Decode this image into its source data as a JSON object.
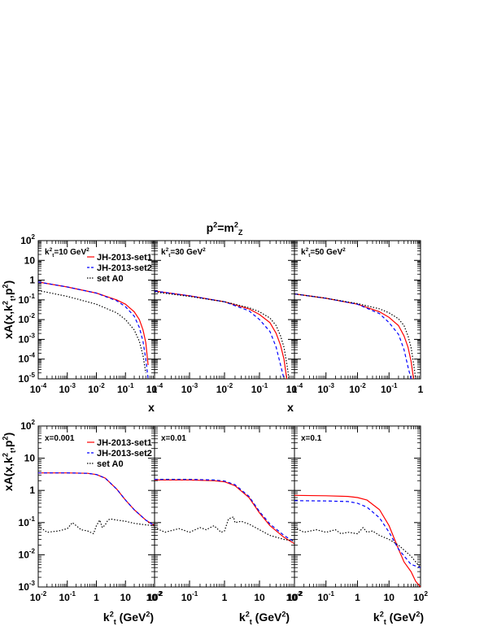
{
  "figure": {
    "title": "p²=m²_Z",
    "top_ylabel": "xA(x,k²_t,p²)",
    "bottom_ylabel": "xA(x,k²_t,p²)",
    "top_xlabel": "x",
    "bottom_xlabel": "k²_t (GeV²)"
  },
  "legend": {
    "entries": [
      {
        "label": "JH-2013-set1",
        "color": "#ff0000",
        "style": "solid"
      },
      {
        "label": "JH-2013-set2",
        "color": "#0000ff",
        "style": "dashed"
      },
      {
        "label": "set A0",
        "color": "#000000",
        "style": "dotted"
      }
    ]
  },
  "chart_data": [
    {
      "type": "line",
      "panel": "top-left",
      "annotation": "k²_t=10 GeV²",
      "xscale": "log",
      "yscale": "log",
      "xlim": [
        0.0001,
        1
      ],
      "ylim": [
        1e-05,
        100
      ],
      "series": [
        {
          "name": "JH-2013-set1",
          "x": [
            0.0001,
            0.001,
            0.01,
            0.05,
            0.1,
            0.2,
            0.3,
            0.4,
            0.5,
            0.6
          ],
          "y": [
            0.8,
            0.45,
            0.22,
            0.1,
            0.06,
            0.025,
            0.01,
            0.003,
            0.0007,
            5e-05
          ]
        },
        {
          "name": "JH-2013-set2",
          "x": [
            0.0001,
            0.001,
            0.01,
            0.05,
            0.1,
            0.2,
            0.3,
            0.4,
            0.5,
            0.6
          ],
          "y": [
            0.8,
            0.45,
            0.22,
            0.09,
            0.045,
            0.015,
            0.004,
            0.0008,
            0.0001,
            1e-05
          ]
        },
        {
          "name": "set A0",
          "x": [
            0.0001,
            0.001,
            0.01,
            0.05,
            0.1,
            0.2,
            0.3,
            0.4,
            0.5
          ],
          "y": [
            0.3,
            0.15,
            0.06,
            0.022,
            0.01,
            0.003,
            0.0008,
            0.00015,
            2e-05
          ]
        }
      ]
    },
    {
      "type": "line",
      "panel": "top-middle",
      "annotation": "k²_t=30 GeV²",
      "xscale": "log",
      "yscale": "log",
      "xlim": [
        0.0001,
        1
      ],
      "ylim": [
        1e-05,
        100
      ],
      "series": [
        {
          "name": "JH-2013-set1",
          "x": [
            0.0001,
            0.001,
            0.01,
            0.05,
            0.1,
            0.2,
            0.3,
            0.4,
            0.5,
            0.6
          ],
          "y": [
            0.28,
            0.16,
            0.08,
            0.035,
            0.018,
            0.007,
            0.002,
            0.0005,
            0.0001,
            1e-05
          ]
        },
        {
          "name": "JH-2013-set2",
          "x": [
            0.0001,
            0.001,
            0.01,
            0.05,
            0.1,
            0.2,
            0.3,
            0.4,
            0.5
          ],
          "y": [
            0.28,
            0.16,
            0.08,
            0.028,
            0.01,
            0.0025,
            0.0004,
            5e-05,
            1e-05
          ]
        },
        {
          "name": "set A0",
          "x": [
            0.0001,
            0.001,
            0.01,
            0.05,
            0.1,
            0.2,
            0.3,
            0.4,
            0.5,
            0.6,
            0.7
          ],
          "y": [
            0.25,
            0.15,
            0.08,
            0.04,
            0.025,
            0.012,
            0.005,
            0.0015,
            0.0004,
            6e-05,
            1e-05
          ]
        }
      ]
    },
    {
      "type": "line",
      "panel": "top-right",
      "annotation": "k²_t=50 GeV²",
      "xscale": "log",
      "yscale": "log",
      "xlim": [
        0.0001,
        1
      ],
      "ylim": [
        1e-05,
        100
      ],
      "series": [
        {
          "name": "JH-2013-set1",
          "x": [
            0.0001,
            0.001,
            0.01,
            0.05,
            0.1,
            0.2,
            0.3,
            0.4,
            0.5,
            0.6
          ],
          "y": [
            0.2,
            0.12,
            0.06,
            0.025,
            0.013,
            0.005,
            0.0015,
            0.0004,
            8e-05,
            1e-05
          ]
        },
        {
          "name": "JH-2013-set2",
          "x": [
            0.0001,
            0.001,
            0.01,
            0.05,
            0.1,
            0.2,
            0.3,
            0.4,
            0.5
          ],
          "y": [
            0.2,
            0.12,
            0.06,
            0.02,
            0.007,
            0.0018,
            0.0003,
            4e-05,
            1e-05
          ]
        },
        {
          "name": "set A0",
          "x": [
            0.0001,
            0.001,
            0.01,
            0.05,
            0.1,
            0.2,
            0.3,
            0.4,
            0.5,
            0.6,
            0.7
          ],
          "y": [
            0.2,
            0.12,
            0.065,
            0.035,
            0.022,
            0.011,
            0.005,
            0.0015,
            0.0004,
            6e-05,
            1e-05
          ]
        }
      ]
    },
    {
      "type": "line",
      "panel": "bottom-left",
      "annotation": "x=0.001",
      "xscale": "log",
      "yscale": "log",
      "xlim": [
        0.01,
        100
      ],
      "ylim": [
        0.001,
        100
      ],
      "series": [
        {
          "name": "JH-2013-set1",
          "x": [
            0.01,
            0.1,
            0.5,
            1,
            2,
            5,
            10,
            20,
            50,
            100
          ],
          "y": [
            3.5,
            3.5,
            3.4,
            3.1,
            2.4,
            1.1,
            0.5,
            0.25,
            0.12,
            0.08
          ]
        },
        {
          "name": "JH-2013-set2",
          "x": [
            0.01,
            0.1,
            0.5,
            1,
            2,
            5,
            10,
            20,
            50,
            100
          ],
          "y": [
            3.5,
            3.5,
            3.4,
            3.1,
            2.4,
            1.1,
            0.5,
            0.25,
            0.12,
            0.08
          ]
        },
        {
          "name": "set A0",
          "x": [
            0.01,
            0.012,
            0.02,
            0.05,
            0.1,
            0.15,
            0.3,
            0.5,
            0.8,
            1,
            1.3,
            1.6,
            2,
            2.5,
            3,
            5,
            10,
            20,
            50,
            100
          ],
          "y": [
            0.1,
            0.07,
            0.05,
            0.055,
            0.065,
            0.1,
            0.06,
            0.055,
            0.045,
            0.08,
            0.12,
            0.07,
            0.085,
            0.12,
            0.13,
            0.12,
            0.11,
            0.095,
            0.085,
            0.08
          ]
        }
      ]
    },
    {
      "type": "line",
      "panel": "bottom-middle",
      "annotation": "x=0.01",
      "xscale": "log",
      "yscale": "log",
      "xlim": [
        0.01,
        100
      ],
      "ylim": [
        0.001,
        100
      ],
      "series": [
        {
          "name": "JH-2013-set1",
          "x": [
            0.01,
            0.1,
            0.5,
            1,
            2,
            5,
            10,
            20,
            50,
            100
          ],
          "y": [
            2.1,
            2.1,
            2.0,
            1.85,
            1.4,
            0.6,
            0.2,
            0.08,
            0.035,
            0.022
          ]
        },
        {
          "name": "JH-2013-set2",
          "x": [
            0.01,
            0.1,
            0.5,
            1,
            2,
            5,
            10,
            20,
            50,
            100
          ],
          "y": [
            2.2,
            2.2,
            2.1,
            1.95,
            1.5,
            0.65,
            0.22,
            0.09,
            0.04,
            0.025
          ]
        },
        {
          "name": "set A0",
          "x": [
            0.01,
            0.02,
            0.05,
            0.1,
            0.2,
            0.3,
            0.5,
            0.8,
            1,
            1.3,
            1.8,
            2,
            3,
            5,
            10,
            20,
            50,
            100
          ],
          "y": [
            0.07,
            0.05,
            0.065,
            0.05,
            0.07,
            0.06,
            0.08,
            0.05,
            0.055,
            0.13,
            0.15,
            0.1,
            0.11,
            0.09,
            0.06,
            0.04,
            0.03,
            0.027
          ]
        }
      ]
    },
    {
      "type": "line",
      "panel": "bottom-right",
      "annotation": "x=0.1",
      "xscale": "log",
      "yscale": "log",
      "xlim": [
        0.01,
        100
      ],
      "ylim": [
        0.001,
        100
      ],
      "series": [
        {
          "name": "JH-2013-set1",
          "x": [
            0.01,
            0.1,
            0.5,
            1,
            2,
            5,
            10,
            20,
            30,
            50,
            70,
            100
          ],
          "y": [
            0.7,
            0.68,
            0.65,
            0.6,
            0.5,
            0.25,
            0.08,
            0.015,
            0.006,
            0.003,
            0.0015,
            0.001
          ]
        },
        {
          "name": "JH-2013-set2",
          "x": [
            0.01,
            0.1,
            0.5,
            1,
            2,
            5,
            10,
            20,
            50,
            100
          ],
          "y": [
            0.48,
            0.47,
            0.45,
            0.4,
            0.3,
            0.14,
            0.05,
            0.015,
            0.005,
            0.004
          ]
        },
        {
          "name": "set A0",
          "x": [
            0.01,
            0.02,
            0.05,
            0.1,
            0.2,
            0.3,
            0.5,
            1,
            1.5,
            2,
            3,
            5,
            10,
            20,
            50,
            100
          ],
          "y": [
            0.07,
            0.05,
            0.06,
            0.05,
            0.06,
            0.045,
            0.05,
            0.045,
            0.07,
            0.05,
            0.055,
            0.04,
            0.03,
            0.02,
            0.009,
            0.004
          ]
        }
      ]
    }
  ]
}
